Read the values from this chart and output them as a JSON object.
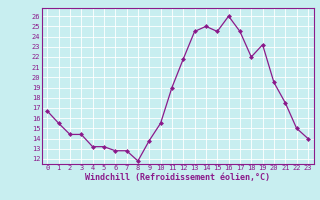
{
  "x": [
    0,
    1,
    2,
    3,
    4,
    5,
    6,
    7,
    8,
    9,
    10,
    11,
    12,
    13,
    14,
    15,
    16,
    17,
    18,
    19,
    20,
    21,
    22,
    23
  ],
  "y": [
    16.7,
    15.5,
    14.4,
    14.4,
    13.2,
    13.2,
    12.8,
    12.8,
    11.8,
    13.8,
    15.5,
    19.0,
    21.8,
    24.5,
    25.0,
    24.5,
    26.0,
    24.5,
    22.0,
    23.2,
    19.5,
    17.5,
    15.0,
    14.0
  ],
  "line_color": "#8b1a8b",
  "marker": "D",
  "markersize": 2.0,
  "linewidth": 0.9,
  "xlabel": "Windchill (Refroidissement éolien,°C)",
  "xlabel_fontsize": 6.0,
  "ylabel_ticks": [
    12,
    13,
    14,
    15,
    16,
    17,
    18,
    19,
    20,
    21,
    22,
    23,
    24,
    25,
    26
  ],
  "xtick_labels": [
    "0",
    "1",
    "2",
    "3",
    "4",
    "5",
    "6",
    "7",
    "8",
    "9",
    "10",
    "11",
    "12",
    "13",
    "14",
    "15",
    "16",
    "17",
    "18",
    "19",
    "20",
    "21",
    "22",
    "23"
  ],
  "ylim": [
    11.5,
    26.8
  ],
  "xlim": [
    -0.5,
    23.5
  ],
  "bg_color": "#c8eef0",
  "grid_color": "#ffffff",
  "tick_color": "#8b1a8b",
  "tick_fontsize": 5.0,
  "spine_color": "#8b1a8b"
}
